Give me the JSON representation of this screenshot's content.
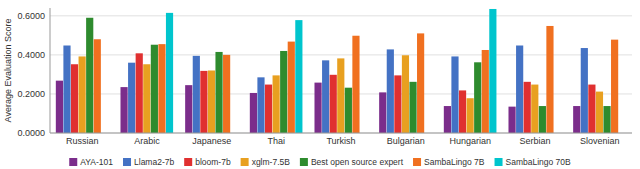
{
  "chart_data": {
    "type": "bar",
    "ylabel": "Average Evaluation Score",
    "categories": [
      "Russian",
      "Arabic",
      "Japanese",
      "Thai",
      "Turkish",
      "Bulgarian",
      "Hungarian",
      "Serbian",
      "Slovenian"
    ],
    "series": [
      {
        "name": "AYA-101",
        "color": "#7b2d8b",
        "values": [
          0.268,
          0.235,
          0.245,
          0.205,
          0.258,
          0.208,
          0.138,
          0.135,
          0.138
        ]
      },
      {
        "name": "Llama2-7b",
        "color": "#4472c4",
        "values": [
          0.448,
          0.36,
          0.395,
          0.285,
          0.372,
          0.428,
          0.392,
          0.448,
          0.435
        ]
      },
      {
        "name": "bloom-7b",
        "color": "#e03030",
        "values": [
          0.352,
          0.408,
          0.318,
          0.248,
          0.298,
          0.295,
          0.218,
          0.262,
          0.248
        ]
      },
      {
        "name": "xglm-7.5B",
        "color": "#e8a020",
        "values": [
          0.392,
          0.352,
          0.32,
          0.295,
          0.382,
          0.398,
          0.178,
          0.248,
          0.212
        ]
      },
      {
        "name": "Best open source expert",
        "color": "#2e8b2e",
        "values": [
          0.59,
          0.452,
          0.415,
          0.42,
          0.232,
          0.262,
          0.362,
          0.138,
          0.138
        ]
      },
      {
        "name": "SambaLingo 7B",
        "color": "#f07020",
        "values": [
          0.48,
          0.455,
          0.4,
          0.468,
          0.498,
          0.51,
          0.425,
          0.548,
          0.478
        ]
      },
      {
        "name": "SambaLingo 70B",
        "color": "#00c5cd",
        "values": [
          0.0,
          0.615,
          0.0,
          0.578,
          0.0,
          0.0,
          0.635,
          0.0,
          0.0
        ]
      }
    ],
    "ylim": [
      0.0,
      0.64
    ],
    "yticks": [
      {
        "value": 0.0,
        "label": "0.0000"
      },
      {
        "value": 0.2,
        "label": "0.2000"
      },
      {
        "value": 0.4,
        "label": "0.4000"
      },
      {
        "value": 0.6,
        "label": "0.6000"
      }
    ],
    "grid": true,
    "legend": "bottom"
  }
}
